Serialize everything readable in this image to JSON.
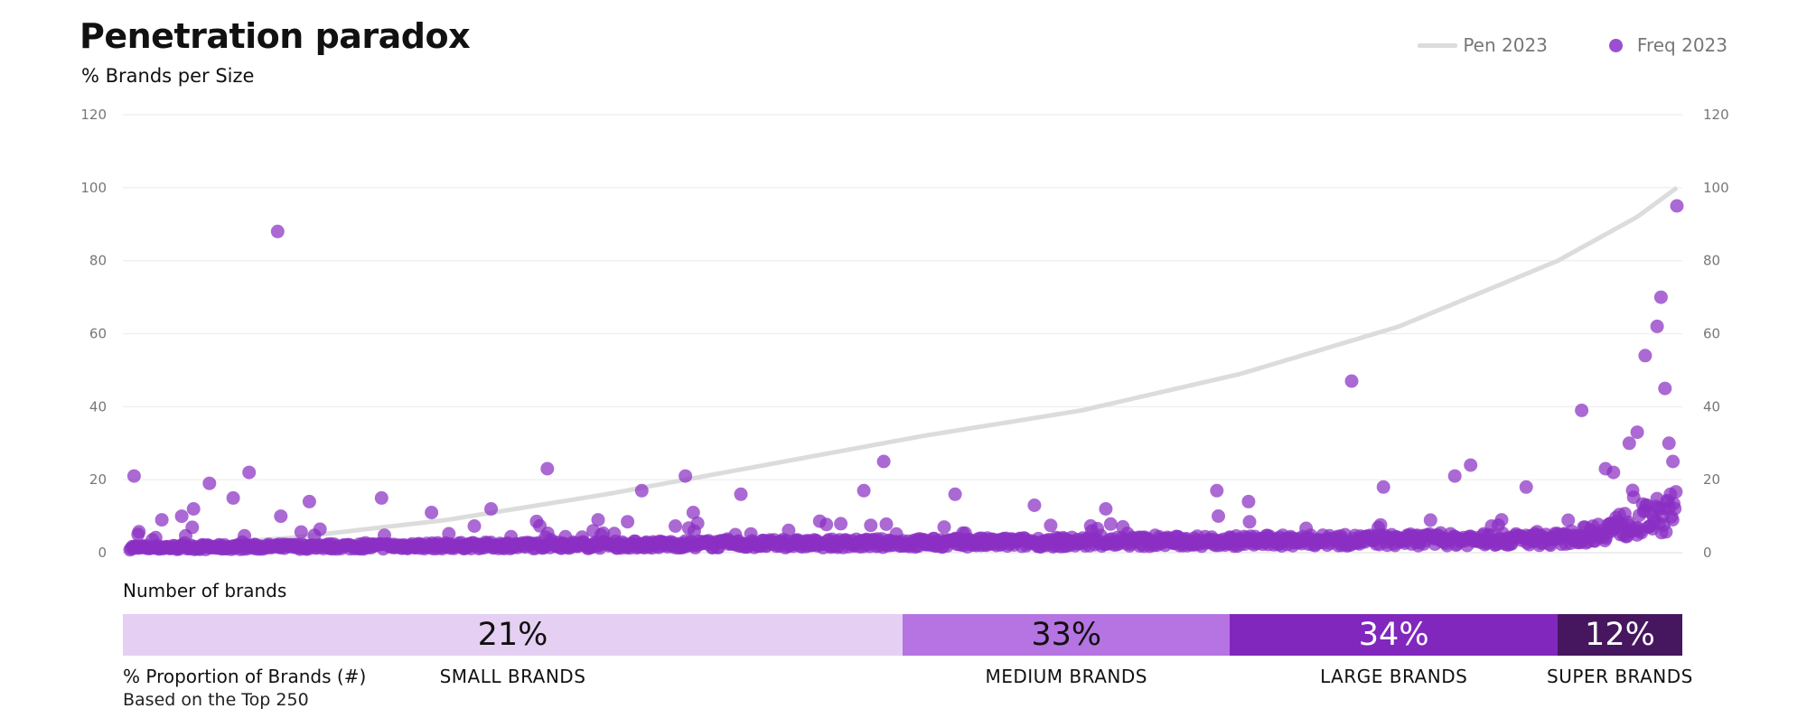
{
  "title": "Penetration paradox",
  "subtitle": "% Brands per Size",
  "legend": {
    "pen_label": "Pen 2023",
    "freq_label": "Freq 2023"
  },
  "colors": {
    "pen_line": "#dcdcdc",
    "freq_dots": "#8a2fc4",
    "gridline": "#ededed",
    "tick": "#777777"
  },
  "chart_data": {
    "type": "scatter",
    "title": "Penetration paradox",
    "ylabel": "% Brands per Size",
    "ylim": [
      0,
      120
    ],
    "yticks": [
      0,
      20,
      40,
      60,
      80,
      100,
      120
    ],
    "secondary_yticks": [
      0,
      20,
      40,
      60,
      80,
      100,
      120
    ],
    "grid": true,
    "legend_position": "top-right",
    "series": [
      {
        "name": "Pen 2023",
        "kind": "line",
        "key_points": [
          {
            "rank": 0,
            "value": 1
          },
          {
            "rank": 60,
            "value": 2
          },
          {
            "rank": 200,
            "value": 4
          },
          {
            "rank": 400,
            "value": 9
          },
          {
            "rank": 600,
            "value": 16
          },
          {
            "rank": 800,
            "value": 24
          },
          {
            "rank": 1000,
            "value": 32
          },
          {
            "rank": 1200,
            "value": 39
          },
          {
            "rank": 1400,
            "value": 49
          },
          {
            "rank": 1600,
            "value": 62
          },
          {
            "rank": 1800,
            "value": 80
          },
          {
            "rank": 1900,
            "value": 92
          },
          {
            "rank": 1950,
            "value": 100
          }
        ]
      },
      {
        "name": "Freq 2023",
        "kind": "scatter",
        "baseline_note": "dense band of points between 1 and 5",
        "notable_points": [
          {
            "rank": 5,
            "value": 21
          },
          {
            "rank": 10,
            "value": 5
          },
          {
            "rank": 40,
            "value": 9
          },
          {
            "rank": 65,
            "value": 10
          },
          {
            "rank": 80,
            "value": 12
          },
          {
            "rank": 100,
            "value": 19
          },
          {
            "rank": 130,
            "value": 15
          },
          {
            "rank": 150,
            "value": 22
          },
          {
            "rank": 186,
            "value": 88
          },
          {
            "rank": 190,
            "value": 10
          },
          {
            "rank": 226,
            "value": 14
          },
          {
            "rank": 317,
            "value": 15
          },
          {
            "rank": 380,
            "value": 11
          },
          {
            "rank": 455,
            "value": 12
          },
          {
            "rank": 526,
            "value": 23
          },
          {
            "rank": 590,
            "value": 9
          },
          {
            "rank": 645,
            "value": 17
          },
          {
            "rank": 700,
            "value": 21
          },
          {
            "rank": 710,
            "value": 11
          },
          {
            "rank": 770,
            "value": 16
          },
          {
            "rank": 925,
            "value": 17
          },
          {
            "rank": 950,
            "value": 25
          },
          {
            "rank": 1040,
            "value": 16
          },
          {
            "rank": 1140,
            "value": 13
          },
          {
            "rank": 1230,
            "value": 12
          },
          {
            "rank": 1370,
            "value": 17
          },
          {
            "rank": 1410,
            "value": 14
          },
          {
            "rank": 1540,
            "value": 47
          },
          {
            "rank": 1580,
            "value": 18
          },
          {
            "rank": 1670,
            "value": 21
          },
          {
            "rank": 1690,
            "value": 24
          },
          {
            "rank": 1760,
            "value": 18
          },
          {
            "rank": 1830,
            "value": 39
          },
          {
            "rank": 1860,
            "value": 23
          },
          {
            "rank": 1870,
            "value": 22
          },
          {
            "rank": 1890,
            "value": 30
          },
          {
            "rank": 1900,
            "value": 33
          },
          {
            "rank": 1910,
            "value": 54
          },
          {
            "rank": 1925,
            "value": 62
          },
          {
            "rank": 1930,
            "value": 70
          },
          {
            "rank": 1935,
            "value": 45
          },
          {
            "rank": 1940,
            "value": 30
          },
          {
            "rank": 1945,
            "value": 25
          },
          {
            "rank": 1950,
            "value": 95
          }
        ]
      }
    ]
  },
  "brand_distribution": {
    "header": "Number of brands",
    "segments": [
      {
        "pct": "21%",
        "share": 0.5,
        "label": "SMALL BRANDS",
        "color": "#e5d0f3",
        "text_color": "#111111"
      },
      {
        "pct": "33%",
        "share": 0.21,
        "label": "MEDIUM BRANDS",
        "color": "#b574e2",
        "text_color": "#111111"
      },
      {
        "pct": "34%",
        "share": 0.21,
        "label": "LARGE BRANDS",
        "color": "#8127bd",
        "text_color": "#ffffff"
      },
      {
        "pct": "12%",
        "share": 0.08,
        "label": "SUPER BRANDS",
        "color": "#46175f",
        "text_color": "#ffffff"
      }
    ],
    "proportion_label": "% Proportion of Brands (#)",
    "based_on": "Based on the Top 250"
  }
}
